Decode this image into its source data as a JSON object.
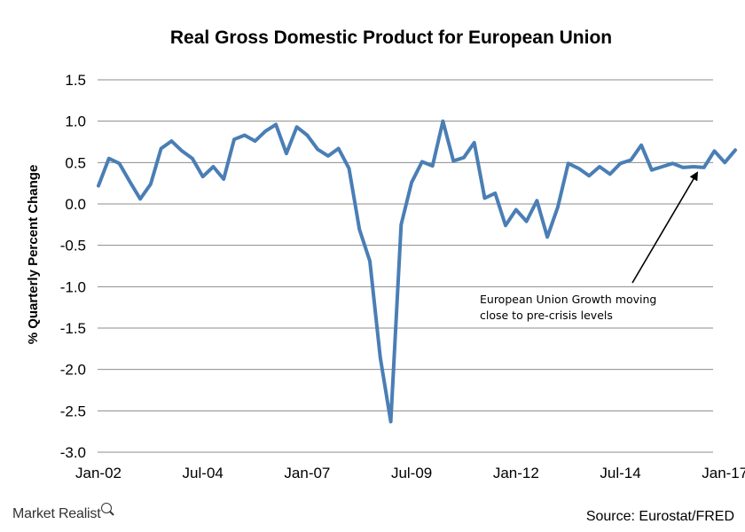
{
  "chart_data": {
    "type": "line",
    "title": "Real Gross Domestic Product for European Union",
    "xlabel": "",
    "ylabel": "% Quarterly Percent Change",
    "ylim": [
      -3.0,
      1.5
    ],
    "yticks": [
      "1.5",
      "1.0",
      "0.5",
      "0.0",
      "-0.5",
      "-1.0",
      "-1.5",
      "-2.0",
      "-2.5",
      "-3.0"
    ],
    "xtick_labels": [
      "Jan-02",
      "Jul-04",
      "Jan-07",
      "Jul-09",
      "Jan-12",
      "Jul-14",
      "Jan-17"
    ],
    "grid": true,
    "line_color": "#4a7eb5",
    "x_start": "Jan-02",
    "frequency": "quarterly",
    "values": [
      0.22,
      0.55,
      0.49,
      0.27,
      0.06,
      0.24,
      0.67,
      0.76,
      0.64,
      0.55,
      0.33,
      0.45,
      0.3,
      0.78,
      0.83,
      0.76,
      0.88,
      0.96,
      0.61,
      0.93,
      0.83,
      0.66,
      0.58,
      0.67,
      0.43,
      -0.31,
      -0.69,
      -1.86,
      -2.63,
      -0.25,
      0.26,
      0.51,
      0.46,
      1.0,
      0.52,
      0.56,
      0.74,
      0.07,
      0.13,
      -0.26,
      -0.07,
      -0.21,
      0.04,
      -0.4,
      -0.04,
      0.49,
      0.43,
      0.34,
      0.45,
      0.36,
      0.49,
      0.53,
      0.71,
      0.41,
      0.45,
      0.49,
      0.44,
      0.45,
      0.44,
      0.64,
      0.5,
      0.65
    ],
    "annotation": {
      "lines": [
        "European Union Growth moving",
        "close to pre-crisis levels"
      ]
    }
  },
  "footer": {
    "brand": "Market Realist",
    "source": "Source:  Eurostat/FRED"
  }
}
